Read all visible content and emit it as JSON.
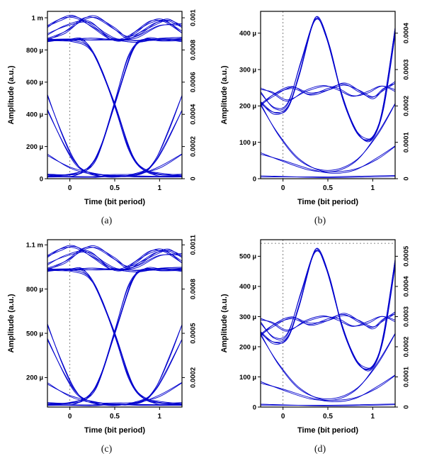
{
  "figure": {
    "background": "#ffffff"
  },
  "colors": {
    "trace": "#0000cd",
    "frame": "#000000",
    "label": "#000000",
    "refline": "#606060"
  },
  "chart_data": [
    {
      "id": "a",
      "caption": "(a)",
      "type": "line",
      "subtype": "eye-diagram",
      "xlabel": "Time (bit period)",
      "ylabel": "Amplitude (a.u.)",
      "xlim": [
        -0.25,
        1.25
      ],
      "x_ticks": [
        {
          "v": 0,
          "label": "0"
        },
        {
          "v": 0.5,
          "label": "0.5"
        },
        {
          "v": 1,
          "label": "1"
        }
      ],
      "y_unit": "1e-6 a.u.",
      "ylim_u": [
        0,
        1040
      ],
      "yscale": 1,
      "left_ticks": [
        {
          "v": 0,
          "label": "0"
        },
        {
          "v": 200,
          "label": "200 µ"
        },
        {
          "v": 400,
          "label": "400 µ"
        },
        {
          "v": 600,
          "label": "600 µ"
        },
        {
          "v": 800,
          "label": "800 µ"
        },
        {
          "v": 1000,
          "label": "1 m"
        }
      ],
      "right_ticks": [
        {
          "v": 0,
          "label": "0"
        },
        {
          "v": 200,
          "label": "0.0002"
        },
        {
          "v": 400,
          "label": "0.0004"
        },
        {
          "v": 600,
          "label": "0.0006"
        },
        {
          "v": 800,
          "label": "0.0008"
        },
        {
          "v": 1000,
          "label": "0.001"
        }
      ],
      "ref_x": [
        0
      ],
      "ref_y": [],
      "traces": [
        {
          "points": [
            [
              -0.25,
              868
            ],
            [
              0,
              864
            ],
            [
              0.25,
              860
            ],
            [
              0.5,
              866
            ],
            [
              0.75,
              860
            ],
            [
              1,
              864
            ],
            [
              1.25,
              868
            ]
          ],
          "bundle": 4,
          "spread": 9
        },
        {
          "points": [
            [
              -0.25,
              872
            ],
            [
              -0.05,
              915
            ],
            [
              0.15,
              985
            ],
            [
              0.3,
              1000
            ],
            [
              0.5,
              938
            ],
            [
              0.65,
              876
            ],
            [
              0.8,
              905
            ],
            [
              0.95,
              965
            ],
            [
              1.1,
              992
            ],
            [
              1.25,
              940
            ]
          ],
          "bundle": 3
        },
        {
          "points": [
            [
              -0.25,
              952
            ],
            [
              -0.1,
              994
            ],
            [
              0.05,
              1000
            ],
            [
              0.25,
              945
            ],
            [
              0.45,
              878
            ],
            [
              0.6,
              866
            ],
            [
              0.75,
              912
            ],
            [
              0.9,
              978
            ],
            [
              1.05,
              988
            ],
            [
              1.25,
              905
            ]
          ],
          "bundle": 3
        },
        {
          "points": [
            [
              -0.25,
              898
            ],
            [
              -0.05,
              952
            ],
            [
              0.2,
              975
            ],
            [
              0.4,
              898
            ],
            [
              0.55,
              866
            ],
            [
              0.75,
              882
            ],
            [
              1,
              948
            ],
            [
              1.25,
              958
            ]
          ],
          "bundle": 2
        },
        {
          "points": [
            [
              -0.25,
              28
            ],
            [
              0,
              24
            ],
            [
              0.15,
              40
            ],
            [
              0.3,
              130
            ],
            [
              0.5,
              468
            ],
            [
              0.7,
              798
            ],
            [
              0.85,
              860
            ],
            [
              1,
              866
            ],
            [
              1.25,
              864
            ]
          ],
          "bundle": 3
        },
        {
          "points": [
            [
              -0.25,
              864
            ],
            [
              0,
              866
            ],
            [
              0.15,
              852
            ],
            [
              0.3,
              738
            ],
            [
              0.5,
              468
            ],
            [
              0.7,
              138
            ],
            [
              0.85,
              44
            ],
            [
              1,
              26
            ],
            [
              1.25,
              28
            ]
          ],
          "bundle": 3
        },
        {
          "points": [
            [
              -0.25,
              22
            ],
            [
              0,
              28
            ],
            [
              0.2,
              62
            ],
            [
              0.35,
              205
            ],
            [
              0.5,
              480
            ],
            [
              0.65,
              758
            ],
            [
              0.8,
              856
            ],
            [
              1,
              862
            ],
            [
              1.25,
              866
            ]
          ],
          "bundle": 2
        },
        {
          "points": [
            [
              -0.25,
              866
            ],
            [
              0,
              860
            ],
            [
              0.2,
              818
            ],
            [
              0.35,
              678
            ],
            [
              0.5,
              452
            ],
            [
              0.65,
              192
            ],
            [
              0.8,
              62
            ],
            [
              1,
              30
            ],
            [
              1.25,
              24
            ]
          ],
          "bundle": 2
        },
        {
          "points": [
            [
              -0.25,
              520
            ],
            [
              -0.1,
              298
            ],
            [
              0.05,
              112
            ],
            [
              0.2,
              36
            ],
            [
              0.5,
              18
            ],
            [
              0.8,
              36
            ],
            [
              0.95,
              112
            ],
            [
              1.1,
              298
            ],
            [
              1.25,
              520
            ]
          ],
          "bundle": 2
        },
        {
          "points": [
            [
              -0.25,
              428
            ],
            [
              -0.05,
              198
            ],
            [
              0.1,
              70
            ],
            [
              0.3,
              24
            ],
            [
              0.5,
              15
            ],
            [
              0.7,
              24
            ],
            [
              0.9,
              70
            ],
            [
              1.05,
              198
            ],
            [
              1.25,
              428
            ]
          ],
          "bundle": 2
        },
        {
          "points": [
            [
              -0.25,
              150
            ],
            [
              0,
              72
            ],
            [
              0.25,
              30
            ],
            [
              0.5,
              20
            ],
            [
              0.75,
              30
            ],
            [
              1,
              72
            ],
            [
              1.25,
              150
            ]
          ],
          "bundle": 2
        },
        {
          "points": [
            [
              -0.25,
              16
            ],
            [
              0.25,
              13
            ],
            [
              0.5,
              15
            ],
            [
              0.75,
              13
            ],
            [
              1.25,
              16
            ]
          ],
          "bundle": 3,
          "spread": 6
        }
      ]
    },
    {
      "id": "b",
      "caption": "(b)",
      "type": "line",
      "subtype": "eye-diagram",
      "xlabel": "Time (bit period)",
      "ylabel": "Amplitude (a.u.)",
      "xlim": [
        -0.25,
        1.25
      ],
      "x_ticks": [
        {
          "v": 0,
          "label": "0"
        },
        {
          "v": 0.5,
          "label": "0.5"
        },
        {
          "v": 1,
          "label": "1"
        }
      ],
      "y_unit": "1e-6 a.u.",
      "ylim_u": [
        0,
        460
      ],
      "yscale": 1,
      "left_ticks": [
        {
          "v": 0,
          "label": "0"
        },
        {
          "v": 100,
          "label": "100 µ"
        },
        {
          "v": 200,
          "label": "200 µ"
        },
        {
          "v": 300,
          "label": "300 µ"
        },
        {
          "v": 400,
          "label": "400 µ"
        }
      ],
      "right_ticks": [
        {
          "v": 0,
          "label": "0"
        },
        {
          "v": 100,
          "label": "0.0001"
        },
        {
          "v": 200,
          "label": "0.0002"
        },
        {
          "v": 300,
          "label": "0.0003"
        },
        {
          "v": 400,
          "label": "0.0004"
        }
      ],
      "ref_x": [
        0
      ],
      "ref_y": [],
      "traces": [
        {
          "points": [
            [
              -0.25,
              212
            ],
            [
              -0.1,
              182
            ],
            [
              0.05,
              192
            ],
            [
              0.18,
              285
            ],
            [
              0.32,
              420
            ],
            [
              0.4,
              440
            ],
            [
              0.52,
              360
            ],
            [
              0.65,
              235
            ],
            [
              0.78,
              150
            ],
            [
              0.9,
              108
            ],
            [
              1.02,
              118
            ],
            [
              1.12,
              205
            ],
            [
              1.25,
              415
            ]
          ],
          "bundle": 3
        },
        {
          "points": [
            [
              -0.25,
              238
            ],
            [
              -0.1,
              196
            ],
            [
              0.05,
              205
            ],
            [
              0.2,
              320
            ],
            [
              0.36,
              438
            ],
            [
              0.48,
              392
            ],
            [
              0.62,
              262
            ],
            [
              0.75,
              165
            ],
            [
              0.88,
              112
            ],
            [
              1,
              112
            ],
            [
              1.12,
              190
            ],
            [
              1.25,
              398
            ]
          ],
          "bundle": 2
        },
        {
          "points": [
            [
              -0.25,
              205
            ],
            [
              -0.1,
              232
            ],
            [
              0.1,
              248
            ],
            [
              0.3,
              232
            ],
            [
              0.5,
              248
            ],
            [
              0.68,
              260
            ],
            [
              0.85,
              238
            ],
            [
              1,
              224
            ],
            [
              1.12,
              248
            ],
            [
              1.25,
              262
            ]
          ],
          "bundle": 3
        },
        {
          "points": [
            [
              -0.25,
              248
            ],
            [
              -0.12,
              238
            ],
            [
              0.05,
              214
            ],
            [
              0.25,
              240
            ],
            [
              0.45,
              256
            ],
            [
              0.62,
              246
            ],
            [
              0.78,
              226
            ],
            [
              0.95,
              238
            ],
            [
              1.1,
              256
            ],
            [
              1.25,
              242
            ]
          ],
          "bundle": 2
        },
        {
          "points": [
            [
              -0.25,
              205
            ],
            [
              -0.05,
              122
            ],
            [
              0.2,
              48
            ],
            [
              0.5,
              20
            ],
            [
              0.8,
              48
            ],
            [
              1.05,
              122
            ],
            [
              1.25,
              205
            ]
          ],
          "bundle": 2
        },
        {
          "points": [
            [
              -0.25,
              70
            ],
            [
              0,
              50
            ],
            [
              0.3,
              24
            ],
            [
              0.55,
              16
            ],
            [
              0.8,
              26
            ],
            [
              1.05,
              56
            ],
            [
              1.25,
              88
            ]
          ],
          "bundle": 2
        },
        {
          "points": [
            [
              -0.25,
              7
            ],
            [
              0.5,
              5
            ],
            [
              1.25,
              7
            ]
          ],
          "bundle": 2,
          "spread": 4
        }
      ]
    },
    {
      "id": "c",
      "caption": "(c)",
      "type": "line",
      "subtype": "eye-diagram",
      "xlabel": "Time (bit period)",
      "ylabel": "Amplitude (a.u.)",
      "xlim": [
        -0.25,
        1.25
      ],
      "x_ticks": [
        {
          "v": 0,
          "label": "0"
        },
        {
          "v": 0.5,
          "label": "0.5"
        },
        {
          "v": 1,
          "label": "1"
        }
      ],
      "y_unit": "1e-6 a.u.",
      "ylim_u": [
        0,
        1135
      ],
      "yscale": 1.08,
      "left_ticks": [
        {
          "v": 200,
          "label": "200 µ"
        },
        {
          "v": 500,
          "label": "500 µ"
        },
        {
          "v": 800,
          "label": "800 µ"
        },
        {
          "v": 1100,
          "label": "1.1 m"
        }
      ],
      "right_ticks": [
        {
          "v": 200,
          "label": "0.0002"
        },
        {
          "v": 500,
          "label": "0.0005"
        },
        {
          "v": 800,
          "label": "0.0008"
        },
        {
          "v": 1100,
          "label": "0.0011"
        }
      ],
      "ref_x": [
        0
      ],
      "ref_y": [],
      "same_traces_as": "a"
    },
    {
      "id": "d",
      "caption": "(d)",
      "type": "line",
      "subtype": "eye-diagram",
      "xlabel": "Time (bit period)",
      "ylabel": "Amplitude (a.u.)",
      "xlim": [
        -0.25,
        1.25
      ],
      "x_ticks": [
        {
          "v": 0,
          "label": "0"
        },
        {
          "v": 0.5,
          "label": "0.5"
        },
        {
          "v": 1,
          "label": "1"
        }
      ],
      "y_unit": "1e-6 a.u.",
      "ylim_u": [
        0,
        555
      ],
      "yscale": 1.18,
      "left_ticks": [
        {
          "v": 0,
          "label": "0"
        },
        {
          "v": 100,
          "label": "100 µ"
        },
        {
          "v": 200,
          "label": "200 µ"
        },
        {
          "v": 300,
          "label": "300 µ"
        },
        {
          "v": 400,
          "label": "400 µ"
        },
        {
          "v": 500,
          "label": "500 µ"
        }
      ],
      "right_ticks": [
        {
          "v": 0,
          "label": "0"
        },
        {
          "v": 100,
          "label": "0.0001"
        },
        {
          "v": 200,
          "label": "0.0002"
        },
        {
          "v": 300,
          "label": "0.0003"
        },
        {
          "v": 400,
          "label": "0.0004"
        },
        {
          "v": 500,
          "label": "0.0005"
        }
      ],
      "ref_x": [
        0
      ],
      "ref_y": [
        543
      ],
      "same_traces_as": "b"
    }
  ]
}
